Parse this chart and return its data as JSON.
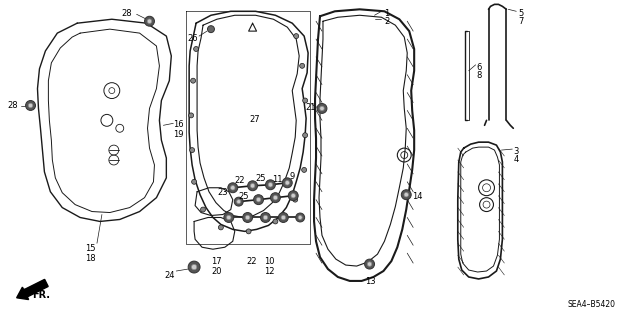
{
  "bg_color": "#ffffff",
  "line_color": "#1a1a1a",
  "fig_width": 6.4,
  "fig_height": 3.19,
  "dpi": 100,
  "diagram_code": "SEA4–B5420"
}
